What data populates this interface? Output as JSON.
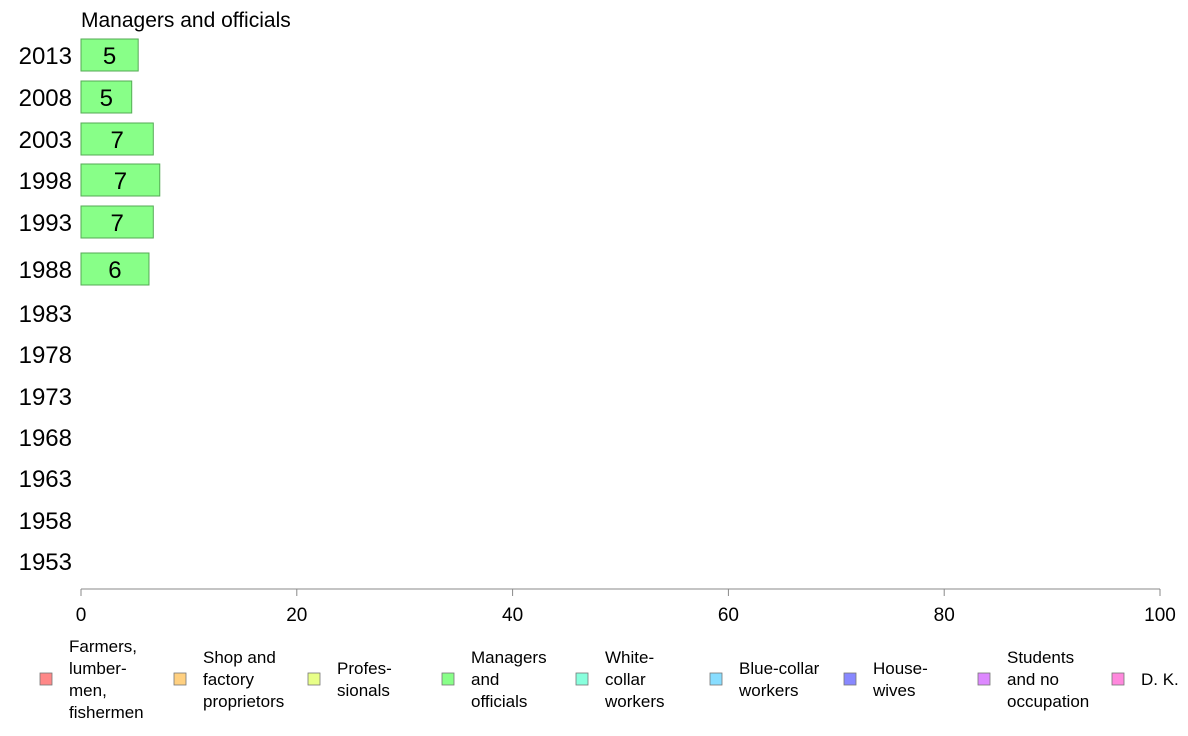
{
  "chart_data": {
    "type": "bar",
    "orientation": "horizontal",
    "title": "Managers and officials",
    "categories": [
      "2013",
      "2008",
      "2003",
      "1998",
      "1993",
      "1988",
      "1983",
      "1978",
      "1973",
      "1968",
      "1963",
      "1958",
      "1953"
    ],
    "series": [
      {
        "name": "Managers and officials",
        "color": "#88ff88",
        "values": [
          5.3,
          4.7,
          6.7,
          7.3,
          6.7,
          6.3,
          null,
          null,
          null,
          null,
          null,
          null,
          null
        ],
        "labels": [
          "5",
          "5",
          "7",
          "7",
          "7",
          "6",
          "",
          "",
          "",
          "",
          "",
          "",
          ""
        ]
      }
    ],
    "xlim": [
      0,
      100
    ],
    "xticks": [
      "0",
      "20",
      "40",
      "60",
      "80",
      "100"
    ],
    "grid": false,
    "legend": {
      "position": "bottom",
      "entries": [
        {
          "lines": [
            "Farmers,",
            "lumber-",
            "men,",
            "fishermen"
          ],
          "color": "#ff8888"
        },
        {
          "lines": [
            "Shop and",
            "factory",
            "proprietors"
          ],
          "color": "#ffd080"
        },
        {
          "lines": [
            "Profes-",
            "sionals"
          ],
          "color": "#e8ff88"
        },
        {
          "lines": [
            "Managers",
            "and",
            "officials"
          ],
          "color": "#88ff88"
        },
        {
          "lines": [
            "White-",
            "collar",
            "workers"
          ],
          "color": "#88ffdd"
        },
        {
          "lines": [
            "Blue-collar",
            "workers"
          ],
          "color": "#88ddff"
        },
        {
          "lines": [
            "House-",
            "wives"
          ],
          "color": "#8888ff"
        },
        {
          "lines": [
            "Students",
            "and no",
            "occupation"
          ],
          "color": "#dd88ff"
        },
        {
          "lines": [
            "D. K."
          ],
          "color": "#ff88dd"
        }
      ]
    }
  }
}
